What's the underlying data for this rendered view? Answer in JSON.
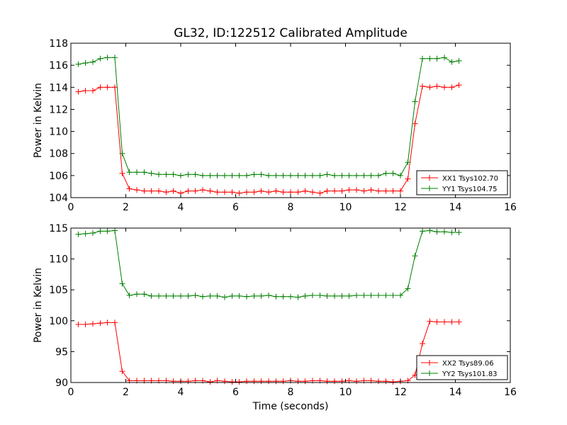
{
  "chart_data": [
    {
      "type": "line",
      "title": "GL32, ID:122512 Calibrated Amplitude",
      "xlabel": "",
      "ylabel": "Power in Kelvin",
      "xlim": [
        0,
        16
      ],
      "ylim": [
        104,
        118
      ],
      "xticks": [
        0,
        2,
        4,
        6,
        8,
        10,
        12,
        14,
        16
      ],
      "yticks": [
        104,
        106,
        108,
        110,
        112,
        114,
        116,
        118
      ],
      "x": [
        0.27,
        0.53,
        0.8,
        1.07,
        1.33,
        1.6,
        1.87,
        2.13,
        2.4,
        2.67,
        2.93,
        3.2,
        3.47,
        3.73,
        4.0,
        4.27,
        4.53,
        4.8,
        5.07,
        5.33,
        5.6,
        5.87,
        6.13,
        6.4,
        6.67,
        6.93,
        7.2,
        7.47,
        7.73,
        8.0,
        8.27,
        8.53,
        8.8,
        9.07,
        9.33,
        9.6,
        9.87,
        10.13,
        10.4,
        10.67,
        10.93,
        11.2,
        11.47,
        11.73,
        12.0,
        12.27,
        12.53,
        12.8,
        13.07,
        13.33,
        13.6,
        13.87,
        14.13
      ],
      "legend_position": "lower-right",
      "series": [
        {
          "name": "XX1 Tsys102.70",
          "color": "#ff0000",
          "values": [
            113.6,
            113.7,
            113.7,
            114.0,
            114.0,
            114.0,
            106.2,
            104.8,
            104.7,
            104.6,
            104.6,
            104.6,
            104.5,
            104.6,
            104.4,
            104.6,
            104.6,
            104.7,
            104.6,
            104.5,
            104.5,
            104.5,
            104.4,
            104.5,
            104.5,
            104.6,
            104.5,
            104.6,
            104.5,
            104.5,
            104.5,
            104.6,
            104.5,
            104.4,
            104.6,
            104.6,
            104.6,
            104.7,
            104.7,
            104.6,
            104.7,
            104.6,
            104.6,
            104.6,
            104.6,
            105.7,
            110.7,
            114.1,
            114.0,
            114.1,
            114.0,
            114.0,
            114.2
          ]
        },
        {
          "name": "YY1 Tsys104.75",
          "color": "#008000",
          "values": [
            116.1,
            116.2,
            116.3,
            116.6,
            116.7,
            116.7,
            108.0,
            106.3,
            106.3,
            106.3,
            106.2,
            106.1,
            106.1,
            106.1,
            106.0,
            106.1,
            106.1,
            106.0,
            106.0,
            106.0,
            106.0,
            106.0,
            106.0,
            106.0,
            106.1,
            106.1,
            106.0,
            106.0,
            106.0,
            106.0,
            106.0,
            106.0,
            106.0,
            106.0,
            106.1,
            106.0,
            106.0,
            106.0,
            106.0,
            106.0,
            106.0,
            106.0,
            106.2,
            106.2,
            106.0,
            107.2,
            112.7,
            116.6,
            116.6,
            116.6,
            116.7,
            116.3,
            116.4
          ]
        }
      ]
    },
    {
      "type": "line",
      "title": "",
      "xlabel": "Time (seconds)",
      "ylabel": "Power in Kelvin",
      "xlim": [
        0,
        16
      ],
      "ylim": [
        90,
        115
      ],
      "xticks": [
        0,
        2,
        4,
        6,
        8,
        10,
        12,
        14,
        16
      ],
      "yticks": [
        90,
        95,
        100,
        105,
        110,
        115
      ],
      "x": [
        0.27,
        0.53,
        0.8,
        1.07,
        1.33,
        1.6,
        1.87,
        2.13,
        2.4,
        2.67,
        2.93,
        3.2,
        3.47,
        3.73,
        4.0,
        4.27,
        4.53,
        4.8,
        5.07,
        5.33,
        5.6,
        5.87,
        6.13,
        6.4,
        6.67,
        6.93,
        7.2,
        7.47,
        7.73,
        8.0,
        8.27,
        8.53,
        8.8,
        9.07,
        9.33,
        9.6,
        9.87,
        10.13,
        10.4,
        10.67,
        10.93,
        11.2,
        11.47,
        11.73,
        12.0,
        12.27,
        12.53,
        12.8,
        13.07,
        13.33,
        13.6,
        13.87,
        14.13
      ],
      "legend_position": "lower-right",
      "series": [
        {
          "name": "XX2 Tsys89.06",
          "color": "#ff0000",
          "values": [
            99.4,
            99.4,
            99.5,
            99.6,
            99.7,
            99.7,
            91.8,
            90.3,
            90.3,
            90.3,
            90.3,
            90.3,
            90.3,
            90.2,
            90.2,
            90.2,
            90.3,
            90.3,
            90.1,
            90.3,
            90.2,
            90.1,
            90.1,
            90.2,
            90.2,
            90.2,
            90.2,
            90.2,
            90.2,
            90.3,
            90.2,
            90.2,
            90.3,
            90.3,
            90.2,
            90.2,
            90.2,
            90.3,
            90.2,
            90.3,
            90.3,
            90.2,
            90.2,
            90.1,
            90.2,
            90.3,
            91.2,
            96.3,
            99.9,
            99.8,
            99.8,
            99.8,
            99.8
          ]
        },
        {
          "name": "YY2 Tsys101.83",
          "color": "#008000",
          "values": [
            114.0,
            114.1,
            114.2,
            114.5,
            114.5,
            114.6,
            106.0,
            104.1,
            104.3,
            104.3,
            104.0,
            104.0,
            104.0,
            104.0,
            104.0,
            104.0,
            104.1,
            103.9,
            104.0,
            104.0,
            103.8,
            104.0,
            104.0,
            103.9,
            104.0,
            104.0,
            104.1,
            103.9,
            103.9,
            103.9,
            103.8,
            104.0,
            104.1,
            104.1,
            104.0,
            104.0,
            104.0,
            104.0,
            104.1,
            104.1,
            104.1,
            104.1,
            104.1,
            104.1,
            104.1,
            105.2,
            110.5,
            114.5,
            114.6,
            114.4,
            114.4,
            114.3,
            114.3
          ]
        }
      ]
    }
  ]
}
